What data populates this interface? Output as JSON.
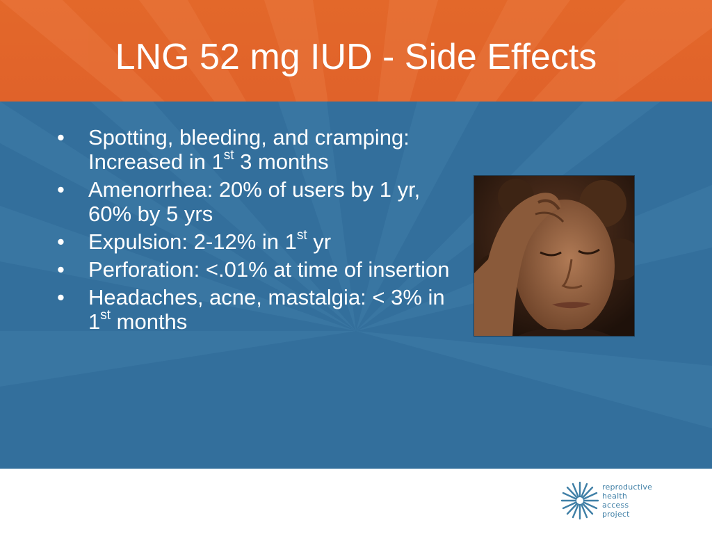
{
  "slide": {
    "title": "LNG 52 mg IUD - Side Effects",
    "colors": {
      "header": "#e3682a",
      "content": "#336f9c",
      "footer": "#ffffff"
    },
    "bullets": [
      {
        "before": "Spotting, bleeding, and cramping:  Increased in 1",
        "sup": "st",
        "after": " 3 months"
      },
      {
        "before": "Amenorrhea: 20% of users by 1 yr, 60% by 5 yrs",
        "sup": "",
        "after": ""
      },
      {
        "before": "Expulsion:  2-12% in 1",
        "sup": "st",
        "after": " yr"
      },
      {
        "before": "Perforation: <.01% at time of insertion",
        "sup": "",
        "after": ""
      },
      {
        "before": "Headaches, acne, mastalgia: < 3% in 1",
        "sup": "st",
        "after": " months"
      }
    ],
    "bullet_symbol": "•",
    "photo_icon": "woman-with-headache-photo"
  },
  "logo": {
    "lines": [
      "reproductive",
      "health",
      "access",
      "project"
    ],
    "icon": "starburst-logo-icon",
    "color": "#3f7fa6"
  }
}
